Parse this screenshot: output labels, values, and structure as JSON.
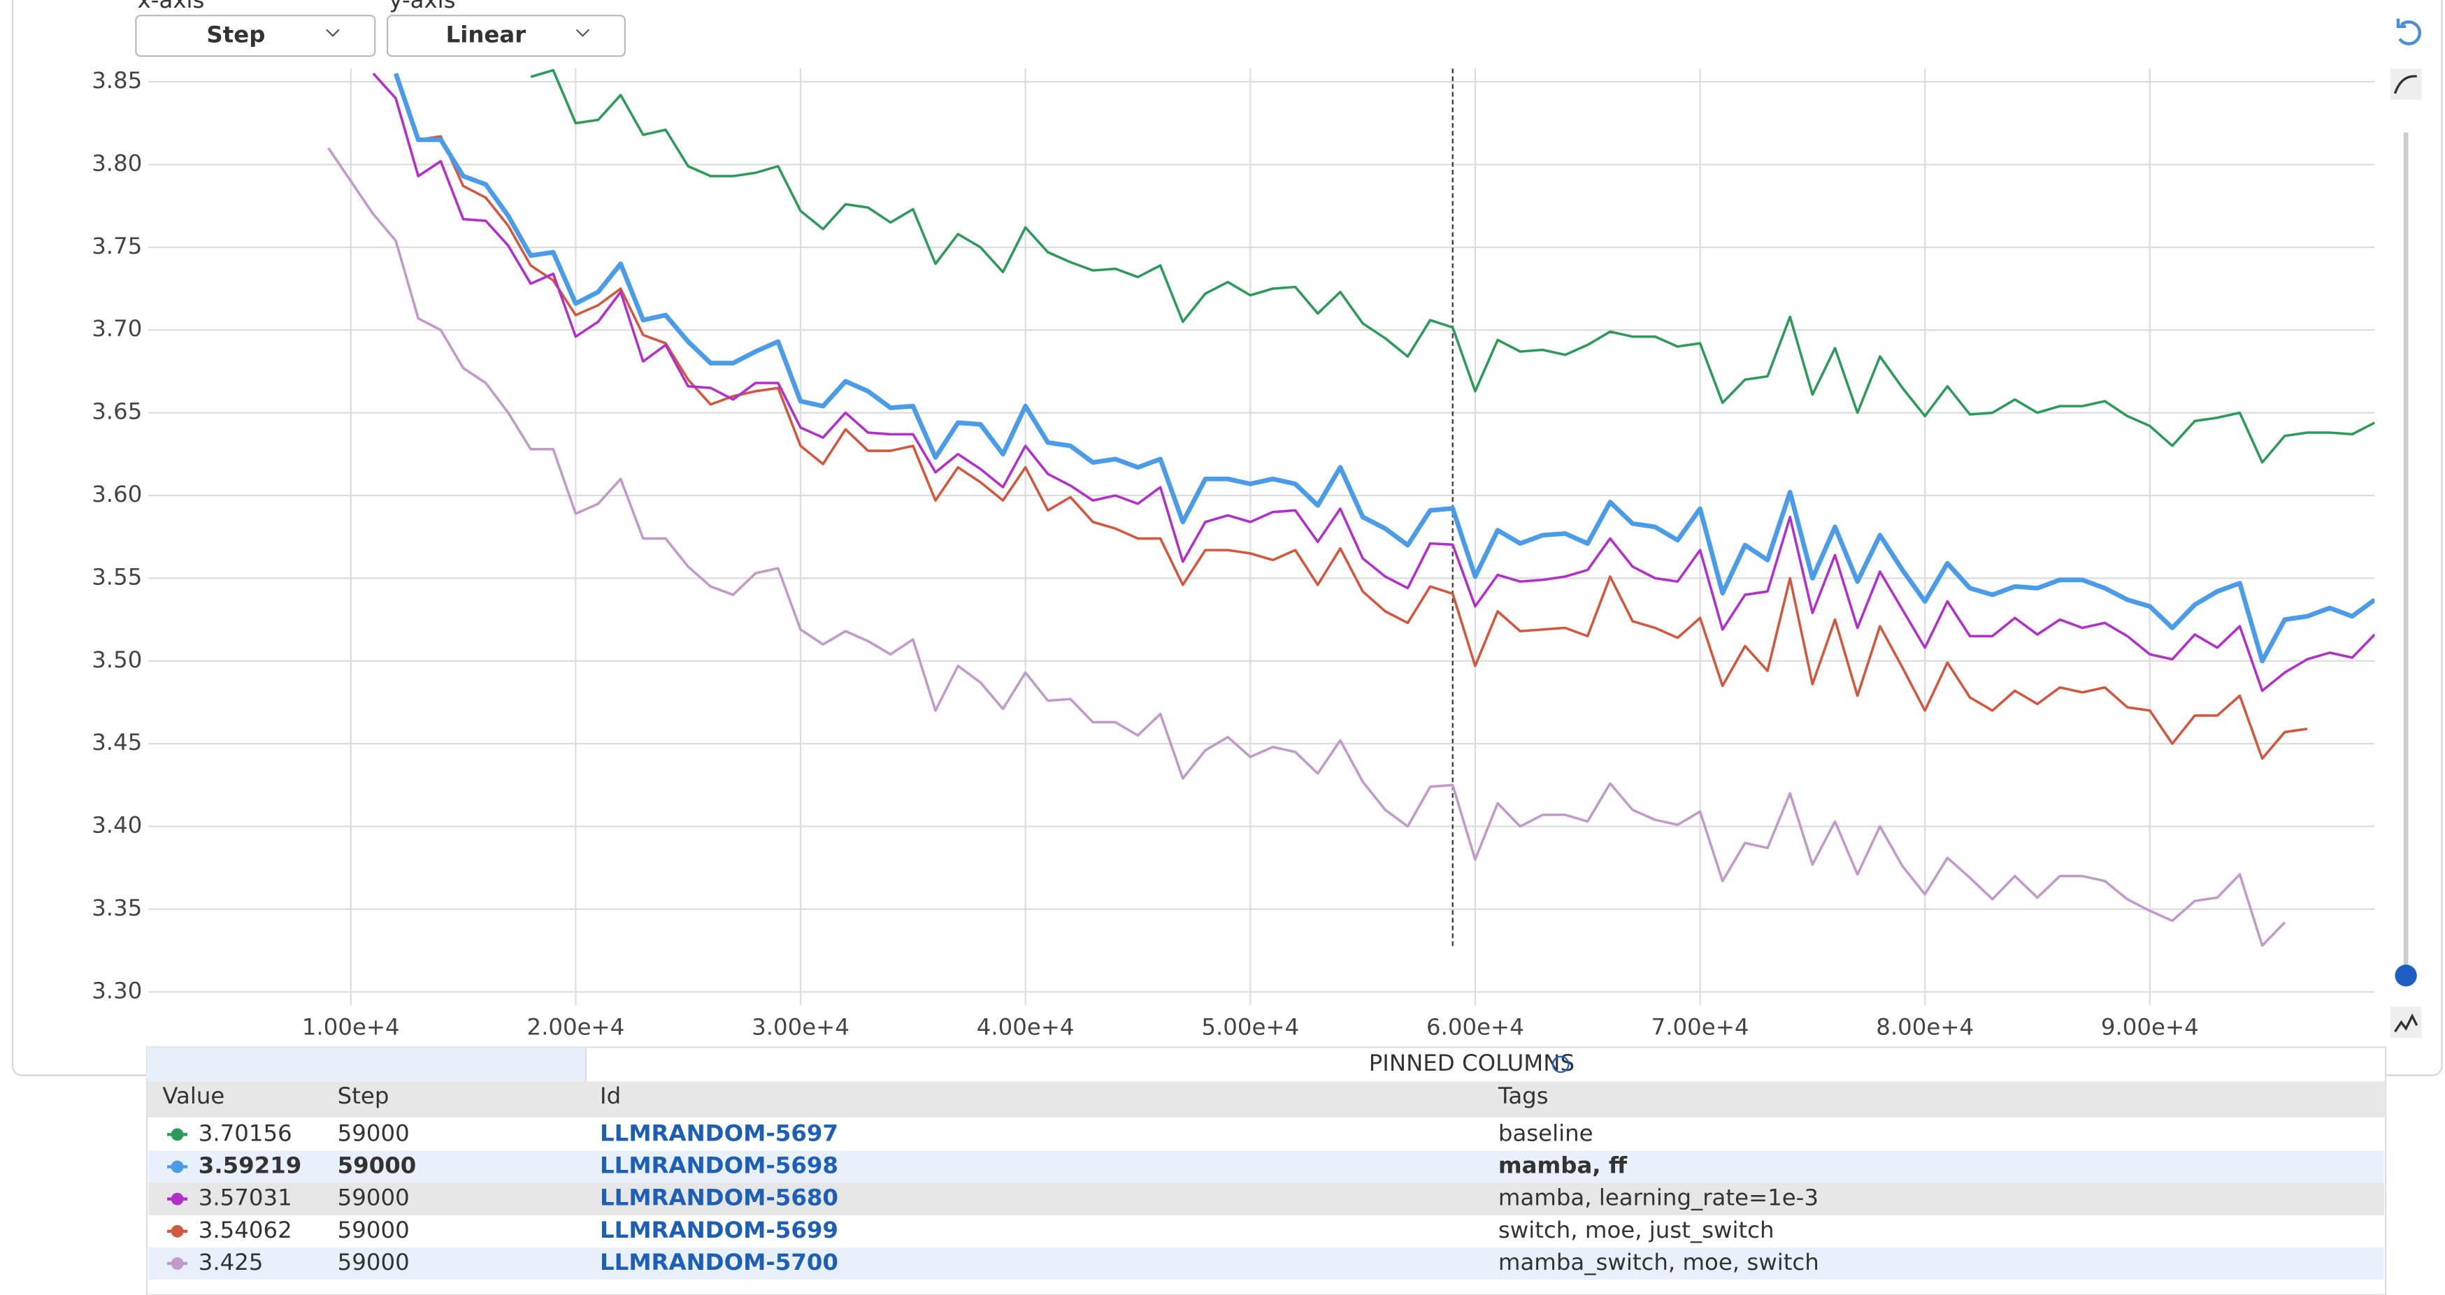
{
  "controls": {
    "x_axis_label": "x-axis",
    "x_axis_value": "Step",
    "y_axis_label": "y-axis",
    "y_axis_value": "Linear"
  },
  "chart_data": {
    "type": "line",
    "x": [
      9000,
      10000,
      11000,
      12000,
      13000,
      14000,
      15000,
      16000,
      17000,
      18000,
      19000,
      20000,
      21000,
      22000,
      23000,
      24000,
      25000,
      26000,
      27000,
      28000,
      29000,
      30000,
      31000,
      32000,
      33000,
      34000,
      35000,
      36000,
      37000,
      38000,
      39000,
      40000,
      41000,
      42000,
      43000,
      44000,
      45000,
      46000,
      47000,
      48000,
      49000,
      50000,
      51000,
      52000,
      53000,
      54000,
      55000,
      56000,
      57000,
      58000,
      59000,
      60000,
      61000,
      62000,
      63000,
      64000,
      65000,
      66000,
      67000,
      68000,
      69000,
      70000,
      71000,
      72000,
      73000,
      74000,
      75000,
      76000,
      77000,
      78000,
      79000,
      80000,
      81000,
      82000,
      83000,
      84000,
      85000,
      86000,
      87000,
      88000,
      89000,
      90000,
      91000,
      92000,
      93000,
      94000,
      95000,
      96000,
      97000,
      98000,
      99000,
      100000
    ],
    "series": [
      {
        "name": "LLMRANDOM-5697",
        "color": "#2e9a5a",
        "values": [
          null,
          null,
          null,
          null,
          null,
          null,
          null,
          null,
          null,
          3.853,
          3.857,
          3.825,
          3.827,
          3.842,
          3.818,
          3.821,
          3.799,
          3.793,
          3.793,
          3.795,
          3.799,
          3.772,
          3.761,
          3.776,
          3.774,
          3.765,
          3.773,
          3.74,
          3.758,
          3.75,
          3.735,
          3.762,
          3.747,
          3.741,
          3.736,
          3.737,
          3.732,
          3.739,
          3.705,
          3.722,
          3.729,
          3.721,
          3.725,
          3.726,
          3.71,
          3.723,
          3.704,
          3.695,
          3.684,
          3.706,
          3.70156,
          3.663,
          3.694,
          3.687,
          3.688,
          3.685,
          3.691,
          3.699,
          3.696,
          3.696,
          3.69,
          3.692,
          3.656,
          3.67,
          3.672,
          3.708,
          3.661,
          3.689,
          3.65,
          3.684,
          3.665,
          3.648,
          3.666,
          3.649,
          3.65,
          3.658,
          3.65,
          3.654,
          3.654,
          3.657,
          3.648,
          3.642,
          3.63,
          3.645,
          3.647,
          3.65,
          3.62,
          3.636,
          3.638,
          3.638,
          3.637,
          3.644
        ]
      },
      {
        "name": "LLMRANDOM-5698",
        "color": "#4a9be8",
        "values": [
          null,
          null,
          null,
          3.855,
          3.815,
          3.815,
          3.793,
          3.788,
          3.769,
          3.745,
          3.747,
          3.716,
          3.723,
          3.74,
          3.706,
          3.709,
          3.693,
          3.68,
          3.68,
          3.687,
          3.693,
          3.657,
          3.654,
          3.669,
          3.663,
          3.653,
          3.654,
          3.623,
          3.644,
          3.643,
          3.625,
          3.654,
          3.632,
          3.63,
          3.62,
          3.622,
          3.617,
          3.622,
          3.584,
          3.61,
          3.61,
          3.607,
          3.61,
          3.607,
          3.594,
          3.617,
          3.587,
          3.58,
          3.57,
          3.591,
          3.59219,
          3.551,
          3.579,
          3.571,
          3.576,
          3.577,
          3.571,
          3.596,
          3.583,
          3.581,
          3.573,
          3.592,
          3.541,
          3.57,
          3.561,
          3.602,
          3.55,
          3.581,
          3.548,
          3.576,
          3.555,
          3.536,
          3.559,
          3.544,
          3.54,
          3.545,
          3.544,
          3.549,
          3.549,
          3.544,
          3.537,
          3.533,
          3.52,
          3.534,
          3.542,
          3.547,
          3.5,
          3.525,
          3.527,
          3.532,
          3.527,
          3.537
        ]
      },
      {
        "name": "LLMRANDOM-5680",
        "color": "#b030c8",
        "values": [
          null,
          null,
          3.855,
          3.84,
          3.793,
          3.802,
          3.767,
          3.766,
          3.751,
          3.728,
          3.734,
          3.696,
          3.705,
          3.723,
          3.681,
          3.691,
          3.666,
          3.665,
          3.658,
          3.668,
          3.668,
          3.641,
          3.635,
          3.65,
          3.638,
          3.637,
          3.637,
          3.614,
          3.625,
          3.616,
          3.605,
          3.63,
          3.613,
          3.606,
          3.597,
          3.6,
          3.595,
          3.605,
          3.56,
          3.584,
          3.588,
          3.584,
          3.59,
          3.591,
          3.572,
          3.592,
          3.562,
          3.551,
          3.544,
          3.571,
          3.57031,
          3.533,
          3.552,
          3.548,
          3.549,
          3.551,
          3.555,
          3.574,
          3.557,
          3.55,
          3.548,
          3.567,
          3.519,
          3.54,
          3.542,
          3.587,
          3.529,
          3.564,
          3.52,
          3.554,
          3.531,
          3.508,
          3.536,
          3.515,
          3.515,
          3.526,
          3.516,
          3.525,
          3.52,
          3.523,
          3.515,
          3.504,
          3.501,
          3.516,
          3.508,
          3.521,
          3.482,
          3.493,
          3.501,
          3.505,
          3.502,
          3.516
        ]
      },
      {
        "name": "LLMRANDOM-5699",
        "color": "#d0583e",
        "values": [
          null,
          null,
          null,
          3.855,
          3.815,
          3.817,
          3.787,
          3.78,
          3.763,
          3.739,
          3.73,
          3.709,
          3.715,
          3.725,
          3.697,
          3.692,
          3.67,
          3.655,
          3.66,
          3.663,
          3.665,
          3.63,
          3.619,
          3.64,
          3.627,
          3.627,
          3.63,
          3.597,
          3.617,
          3.608,
          3.597,
          3.617,
          3.591,
          3.599,
          3.584,
          3.58,
          3.574,
          3.574,
          3.546,
          3.567,
          3.567,
          3.565,
          3.561,
          3.567,
          3.546,
          3.568,
          3.542,
          3.53,
          3.523,
          3.545,
          3.54062,
          3.497,
          3.53,
          3.518,
          3.519,
          3.52,
          3.515,
          3.551,
          3.524,
          3.52,
          3.514,
          3.526,
          3.485,
          3.509,
          3.494,
          3.55,
          3.486,
          3.525,
          3.479,
          3.521,
          3.496,
          3.47,
          3.499,
          3.478,
          3.47,
          3.482,
          3.474,
          3.484,
          3.481,
          3.484,
          3.472,
          3.47,
          3.45,
          3.467,
          3.467,
          3.479,
          3.441,
          3.457,
          3.459,
          null,
          null,
          null
        ]
      },
      {
        "name": "LLMRANDOM-5700",
        "color": "#c09ac8",
        "values": [
          3.81,
          3.79,
          3.77,
          3.754,
          3.707,
          3.7,
          3.677,
          3.668,
          3.65,
          3.628,
          3.628,
          3.589,
          3.595,
          3.61,
          3.574,
          3.574,
          3.557,
          3.545,
          3.54,
          3.553,
          3.556,
          3.519,
          3.51,
          3.518,
          3.512,
          3.504,
          3.513,
          3.47,
          3.497,
          3.487,
          3.471,
          3.493,
          3.476,
          3.477,
          3.463,
          3.463,
          3.455,
          3.468,
          3.429,
          3.446,
          3.454,
          3.442,
          3.448,
          3.445,
          3.432,
          3.452,
          3.427,
          3.41,
          3.4,
          3.424,
          3.425,
          3.38,
          3.414,
          3.4,
          3.407,
          3.407,
          3.403,
          3.426,
          3.41,
          3.404,
          3.401,
          3.409,
          3.367,
          3.39,
          3.387,
          3.42,
          3.377,
          3.403,
          3.371,
          3.4,
          3.376,
          3.359,
          3.381,
          3.369,
          3.356,
          3.37,
          3.357,
          3.37,
          3.37,
          3.367,
          3.356,
          3.349,
          3.343,
          3.355,
          3.357,
          3.371,
          3.328,
          3.342,
          null,
          null,
          null,
          null
        ]
      }
    ],
    "xlim": [
      1000,
      100000
    ],
    "ylim": [
      3.292,
      3.858
    ],
    "xticks": [
      {
        "value": 10000,
        "label": "1.00e+4"
      },
      {
        "value": 20000,
        "label": "2.00e+4"
      },
      {
        "value": 30000,
        "label": "3.00e+4"
      },
      {
        "value": 40000,
        "label": "4.00e+4"
      },
      {
        "value": 50000,
        "label": "5.00e+4"
      },
      {
        "value": 60000,
        "label": "6.00e+4"
      },
      {
        "value": 70000,
        "label": "7.00e+4"
      },
      {
        "value": 80000,
        "label": "8.00e+4"
      },
      {
        "value": 90000,
        "label": "9.00e+4"
      }
    ],
    "yticks": [
      {
        "value": 3.3,
        "label": "3.30"
      },
      3.35,
      {
        "value": 3.4,
        "label": "3.40"
      },
      3.45,
      {
        "value": 3.5,
        "label": "3.50"
      },
      3.55,
      {
        "value": 3.6,
        "label": "3.60"
      },
      3.65,
      {
        "value": 3.7,
        "label": "3.70"
      },
      3.75,
      {
        "value": 3.8,
        "label": "3.80"
      },
      3.85
    ],
    "grid": true
  },
  "table": {
    "pinned_label": "PINNED COLUMNS",
    "headers": [
      "Value",
      "Step",
      "Id",
      "Tags"
    ],
    "rows": [
      [
        3.70156,
        59000,
        "LLMRANDOM-5697",
        "baseline"
      ],
      [
        3.59219,
        59000,
        "LLMRANDOM-5698",
        "mamba, ff"
      ],
      [
        3.57031,
        59000,
        "LLMRANDOM-5680",
        "mamba, learning_rate=1e-3"
      ],
      [
        3.54062,
        59000,
        "LLMRANDOM-5699",
        "switch, moe, just_switch"
      ],
      [
        3.425,
        59000,
        "LLMRANDOM-5700",
        "mamba_switch, moe, switch"
      ]
    ]
  }
}
